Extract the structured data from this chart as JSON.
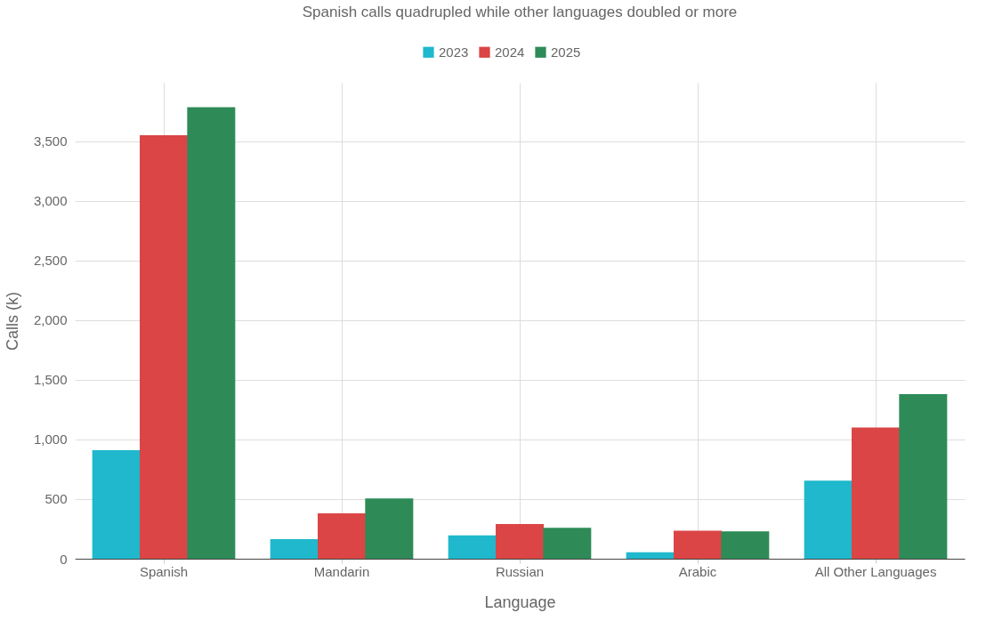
{
  "chart_data": {
    "type": "bar",
    "title": "Spanish calls quadrupled while other languages doubled or more",
    "xlabel": "Language",
    "ylabel": "Calls (k)",
    "categories": [
      "Spanish",
      "Mandarin",
      "Russian",
      "Arabic",
      "All Other Languages"
    ],
    "series": [
      {
        "name": "2023",
        "color": "#1fb8cd",
        "values": [
          910,
          165,
          195,
          55,
          655
        ]
      },
      {
        "name": "2024",
        "color": "#db4545",
        "values": [
          3550,
          380,
          290,
          235,
          1100
        ]
      },
      {
        "name": "2025",
        "color": "#2e8b57",
        "values": [
          3785,
          505,
          260,
          230,
          1380
        ]
      }
    ],
    "ylim": [
      0,
      3990
    ],
    "yticks": [
      0,
      {
        "value": 500,
        "label": "500"
      },
      {
        "value": 1000,
        "label": "1,000"
      },
      {
        "value": 1500,
        "label": "1,500"
      },
      {
        "value": 2000,
        "label": "2,000"
      },
      {
        "value": 2500,
        "label": "2,500"
      },
      {
        "value": 3000,
        "label": "3,000"
      },
      {
        "value": 3500,
        "label": "3,500"
      }
    ],
    "grid": true,
    "legend": "top"
  }
}
